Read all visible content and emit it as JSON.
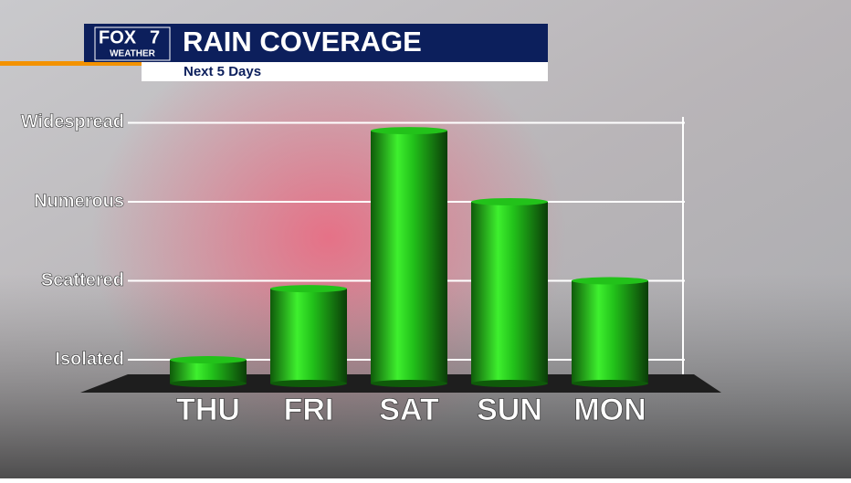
{
  "brand": {
    "name": "FOX",
    "number": "7",
    "sub": "WEATHER"
  },
  "chart_data": {
    "type": "bar",
    "title": "RAIN COVERAGE",
    "subtitle": "Next 5 Days",
    "categories": [
      "THU",
      "FRI",
      "SAT",
      "SUN",
      "MON"
    ],
    "values": [
      1,
      1.9,
      3.9,
      3,
      2
    ],
    "color": "#22c21a",
    "ylim": [
      0.7,
      4.04
    ],
    "yticks": [
      {
        "value": 1,
        "label": "Isolated"
      },
      {
        "value": 2,
        "label": "Scattered"
      },
      {
        "value": 3,
        "label": "Numerous"
      },
      {
        "value": 4,
        "label": "Widespread"
      }
    ],
    "grid": true
  }
}
